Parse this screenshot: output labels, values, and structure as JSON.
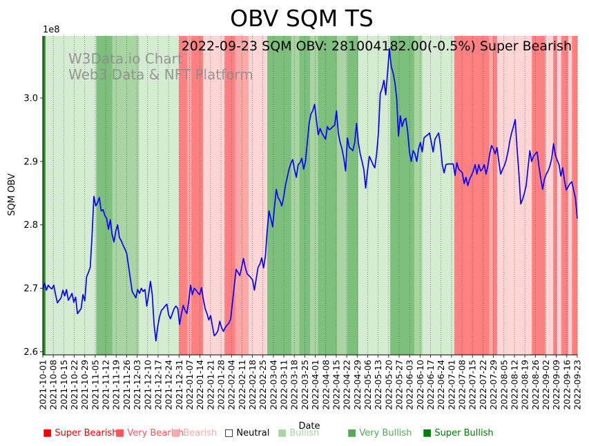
{
  "chart_data": {
    "type": "line",
    "title": "OBV SQM TS",
    "annotation": "2022-09-23 SQM OBV: 281004182.00(-0.5%) Super Bearish",
    "watermark": [
      "W3Data.io Chart",
      "Web3 Data & NFT Platform"
    ],
    "xlabel": "Date",
    "ylabel": "SQM OBV",
    "y_multiplier_label": "1e8",
    "ylim": [
      2.595,
      3.098
    ],
    "yticks": [
      2.6,
      2.7,
      2.8,
      2.9,
      3.0
    ],
    "ytick_labels": [
      "2.6",
      "2.7",
      "2.8",
      "2.9",
      "3.0"
    ],
    "x_start": "2021-10-01",
    "x_end": "2022-09-23",
    "xtick_labels": [
      "2021-10-01",
      "2021-10-08",
      "2021-10-15",
      "2021-10-22",
      "2021-10-29",
      "2021-11-05",
      "2021-11-12",
      "2021-11-19",
      "2021-11-26",
      "2021-12-03",
      "2021-12-10",
      "2021-12-17",
      "2021-12-24",
      "2021-12-31",
      "2022-01-07",
      "2022-01-14",
      "2022-01-21",
      "2022-01-28",
      "2022-02-04",
      "2022-02-11",
      "2022-02-18",
      "2022-02-25",
      "2022-03-04",
      "2022-03-11",
      "2022-03-18",
      "2022-03-25",
      "2022-04-01",
      "2022-04-08",
      "2022-04-15",
      "2022-04-22",
      "2022-04-29",
      "2022-05-06",
      "2022-05-13",
      "2022-05-20",
      "2022-05-27",
      "2022-06-03",
      "2022-06-10",
      "2022-06-17",
      "2022-06-24",
      "2022-07-01",
      "2022-07-08",
      "2022-07-15",
      "2022-07-22",
      "2022-07-29",
      "2022-08-05",
      "2022-08-12",
      "2022-08-19",
      "2022-08-26",
      "2022-09-02",
      "2022-09-09",
      "2022-09-16",
      "2022-09-23"
    ],
    "series": [
      {
        "name": "SQM OBV",
        "color": "#0000ff",
        "y": [
          2.698,
          2.708,
          2.697,
          2.705,
          2.701,
          2.699,
          2.705,
          2.69,
          2.677,
          2.681,
          2.685,
          2.697,
          2.688,
          2.698,
          2.681,
          2.686,
          2.692,
          2.678,
          2.686,
          2.66,
          2.664,
          2.668,
          2.69,
          2.68,
          2.718,
          2.725,
          2.733,
          2.783,
          2.845,
          2.83,
          2.835,
          2.843,
          2.822,
          2.824,
          2.815,
          2.81,
          2.793,
          2.808,
          2.785,
          2.773,
          2.79,
          2.8,
          2.78,
          2.775,
          2.768,
          2.762,
          2.755,
          2.735,
          2.715,
          2.695,
          2.69,
          2.685,
          2.698,
          2.692,
          2.7,
          2.695,
          2.698,
          2.672,
          2.69,
          2.711,
          2.69,
          2.643,
          2.617,
          2.64,
          2.655,
          2.665,
          2.668,
          2.672,
          2.675,
          2.658,
          2.652,
          2.66,
          2.668,
          2.672,
          2.668,
          2.643,
          2.66,
          2.673,
          2.665,
          2.66,
          2.68,
          2.705,
          2.69,
          2.7,
          2.697,
          2.693,
          2.69,
          2.701,
          2.683,
          2.668,
          2.66,
          2.65,
          2.657,
          2.64,
          2.625,
          2.628,
          2.633,
          2.648,
          2.638,
          2.632,
          2.638,
          2.642,
          2.645,
          2.652,
          2.678,
          2.705,
          2.73,
          2.725,
          2.72,
          2.733,
          2.747,
          2.733,
          2.723,
          2.72,
          2.717,
          2.713,
          2.697,
          2.715,
          2.733,
          2.738,
          2.748,
          2.732,
          2.75,
          2.79,
          2.822,
          2.81,
          2.797,
          2.828,
          2.856,
          2.843,
          2.838,
          2.83,
          2.843,
          2.862,
          2.875,
          2.888,
          2.897,
          2.903,
          2.887,
          2.875,
          2.895,
          2.898,
          2.905,
          2.888,
          2.9,
          2.93,
          2.96,
          2.975,
          2.98,
          2.99,
          2.965,
          2.942,
          2.952,
          2.945,
          2.94,
          2.935,
          2.955,
          2.95,
          2.952,
          2.955,
          2.957,
          2.98,
          2.945,
          2.93,
          2.92,
          2.905,
          2.885,
          2.937,
          2.922,
          2.92,
          2.917,
          2.93,
          2.96,
          2.93,
          2.912,
          2.9,
          2.887,
          2.858,
          2.885,
          2.908,
          2.902,
          2.895,
          2.89,
          2.912,
          2.945,
          3.007,
          3.015,
          3.028,
          3.005,
          3.04,
          3.078,
          3.05,
          3.04,
          3.025,
          3.0,
          2.94,
          2.972,
          2.955,
          2.965,
          2.968,
          2.948,
          2.915,
          2.9,
          2.917,
          2.912,
          2.9,
          2.92,
          2.93,
          2.915,
          2.937,
          2.94,
          2.942,
          2.945,
          2.93,
          2.915,
          2.935,
          2.94,
          2.945,
          2.925,
          2.895,
          2.882,
          2.895,
          2.896,
          2.896,
          2.896,
          2.896,
          2.878,
          2.898,
          2.888,
          2.885,
          2.882,
          2.865,
          2.875,
          2.862,
          2.872,
          2.878,
          2.885,
          2.895,
          2.88,
          2.895,
          2.885,
          2.888,
          2.895,
          2.88,
          2.893,
          2.912,
          2.925,
          2.92,
          2.912,
          2.922,
          2.9,
          2.88,
          2.887,
          2.893,
          2.902,
          2.915,
          2.932,
          2.945,
          2.955,
          2.966,
          2.92,
          2.882,
          2.833,
          2.84,
          2.85,
          2.862,
          2.89,
          2.917,
          2.9,
          2.908,
          2.912,
          2.915,
          2.892,
          2.873,
          2.856,
          2.872,
          2.88,
          2.885,
          2.893,
          2.905,
          2.928,
          2.91,
          2.902,
          2.895,
          2.877,
          2.89,
          2.87,
          2.855,
          2.86,
          2.865,
          2.868,
          2.855,
          2.842,
          2.81
        ]
      }
    ],
    "regimes": [
      {
        "from": 0,
        "to": 0.005,
        "level": 3
      },
      {
        "from": 0.005,
        "to": 0.1,
        "level": 1
      },
      {
        "from": 0.1,
        "to": 0.13,
        "level": 2
      },
      {
        "from": 0.13,
        "to": 0.18,
        "level": 1.5
      },
      {
        "from": 0.18,
        "to": 0.255,
        "level": 1
      },
      {
        "from": 0.255,
        "to": 0.27,
        "level": -3
      },
      {
        "from": 0.27,
        "to": 0.278,
        "level": -2
      },
      {
        "from": 0.278,
        "to": 0.3,
        "level": -3
      },
      {
        "from": 0.3,
        "to": 0.34,
        "level": -1
      },
      {
        "from": 0.34,
        "to": 0.36,
        "level": -3
      },
      {
        "from": 0.36,
        "to": 0.385,
        "level": -2
      },
      {
        "from": 0.385,
        "to": 0.42,
        "level": -1
      },
      {
        "from": 0.42,
        "to": 0.465,
        "level": 2
      },
      {
        "from": 0.465,
        "to": 0.48,
        "level": 1.5
      },
      {
        "from": 0.48,
        "to": 0.5,
        "level": 2
      },
      {
        "from": 0.5,
        "to": 0.515,
        "level": 1.5
      },
      {
        "from": 0.515,
        "to": 0.55,
        "level": 2
      },
      {
        "from": 0.55,
        "to": 0.57,
        "level": 1.5
      },
      {
        "from": 0.57,
        "to": 0.59,
        "level": 2
      },
      {
        "from": 0.59,
        "to": 0.65,
        "level": 1
      },
      {
        "from": 0.65,
        "to": 0.695,
        "level": 2
      },
      {
        "from": 0.695,
        "to": 0.71,
        "level": 1.5
      },
      {
        "from": 0.71,
        "to": 0.75,
        "level": 1
      },
      {
        "from": 0.75,
        "to": 0.77,
        "level": 1
      },
      {
        "from": 0.77,
        "to": 0.835,
        "level": -3
      },
      {
        "from": 0.835,
        "to": 0.842,
        "level": -2
      },
      {
        "from": 0.842,
        "to": 0.85,
        "level": -3
      },
      {
        "from": 0.85,
        "to": 0.915,
        "level": -1
      },
      {
        "from": 0.915,
        "to": 0.94,
        "level": -3
      },
      {
        "from": 0.94,
        "to": 0.955,
        "level": -1
      },
      {
        "from": 0.955,
        "to": 0.962,
        "level": -3
      },
      {
        "from": 0.962,
        "to": 0.97,
        "level": -1
      },
      {
        "from": 0.97,
        "to": 0.983,
        "level": -3
      },
      {
        "from": 0.983,
        "to": 0.99,
        "level": -1
      },
      {
        "from": 0.99,
        "to": 1.0,
        "level": -3
      }
    ],
    "regime_colors": {
      "3": "#2e8b2e",
      "2": "#7dbf7d",
      "1.5": "#a8d5a2",
      "1": "#d5ebd2",
      "-1": "#ffd6d6",
      "-2": "#ffa8a8",
      "-3": "#ff8080"
    },
    "legend": [
      {
        "label": "Super Bearish",
        "color": "#ff0000",
        "marker": "■"
      },
      {
        "label": "Very Bearish",
        "color": "#ff5555",
        "marker": "■"
      },
      {
        "label": "Bearish",
        "color": "#ffaaaa",
        "marker": "■"
      },
      {
        "label": "Neutral",
        "color": "#000000",
        "marker": "□"
      },
      {
        "label": "Bullish",
        "color": "#a8d5a2",
        "marker": "■"
      },
      {
        "label": "Very Bullish",
        "color": "#55aa55",
        "marker": "■"
      },
      {
        "label": "Super Bullish",
        "color": "#008000",
        "marker": "■"
      }
    ]
  }
}
